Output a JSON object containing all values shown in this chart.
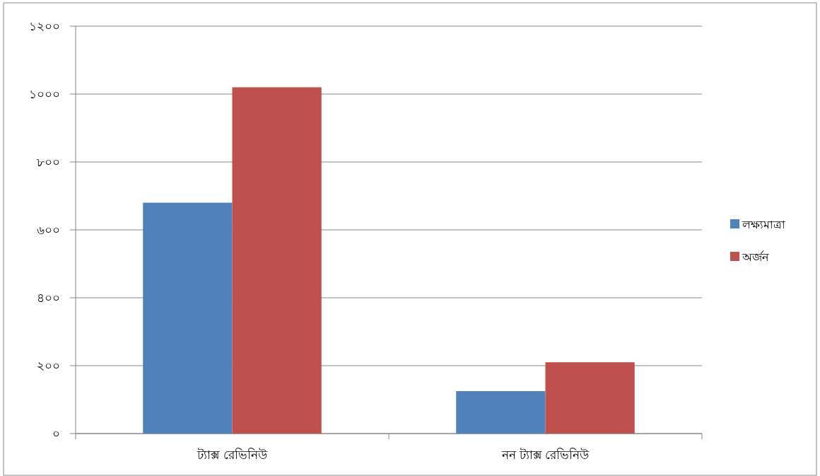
{
  "chart_data": {
    "type": "bar",
    "categories": [
      "ট্যাক্স রেভিনিউ",
      "নন ট্যাক্স রেভিনিউ"
    ],
    "series": [
      {
        "name": "লক্ষ্যমাত্রা",
        "color": "#4f81bd",
        "values": [
          680,
          125
        ]
      },
      {
        "name": "অর্জন",
        "color": "#c0504d",
        "values": [
          1020,
          210
        ]
      }
    ],
    "ylim": [
      0,
      1200
    ],
    "yticks": [
      {
        "value": 0,
        "label": "০"
      },
      {
        "value": 200,
        "label": "২০০"
      },
      {
        "value": 400,
        "label": "৪০০"
      },
      {
        "value": 600,
        "label": "৬০০"
      },
      {
        "value": 800,
        "label": "৮০০"
      },
      {
        "value": 1000,
        "label": "১০০০"
      },
      {
        "value": 1200,
        "label": "১২০০"
      }
    ],
    "grid": "y",
    "legend": "right"
  }
}
